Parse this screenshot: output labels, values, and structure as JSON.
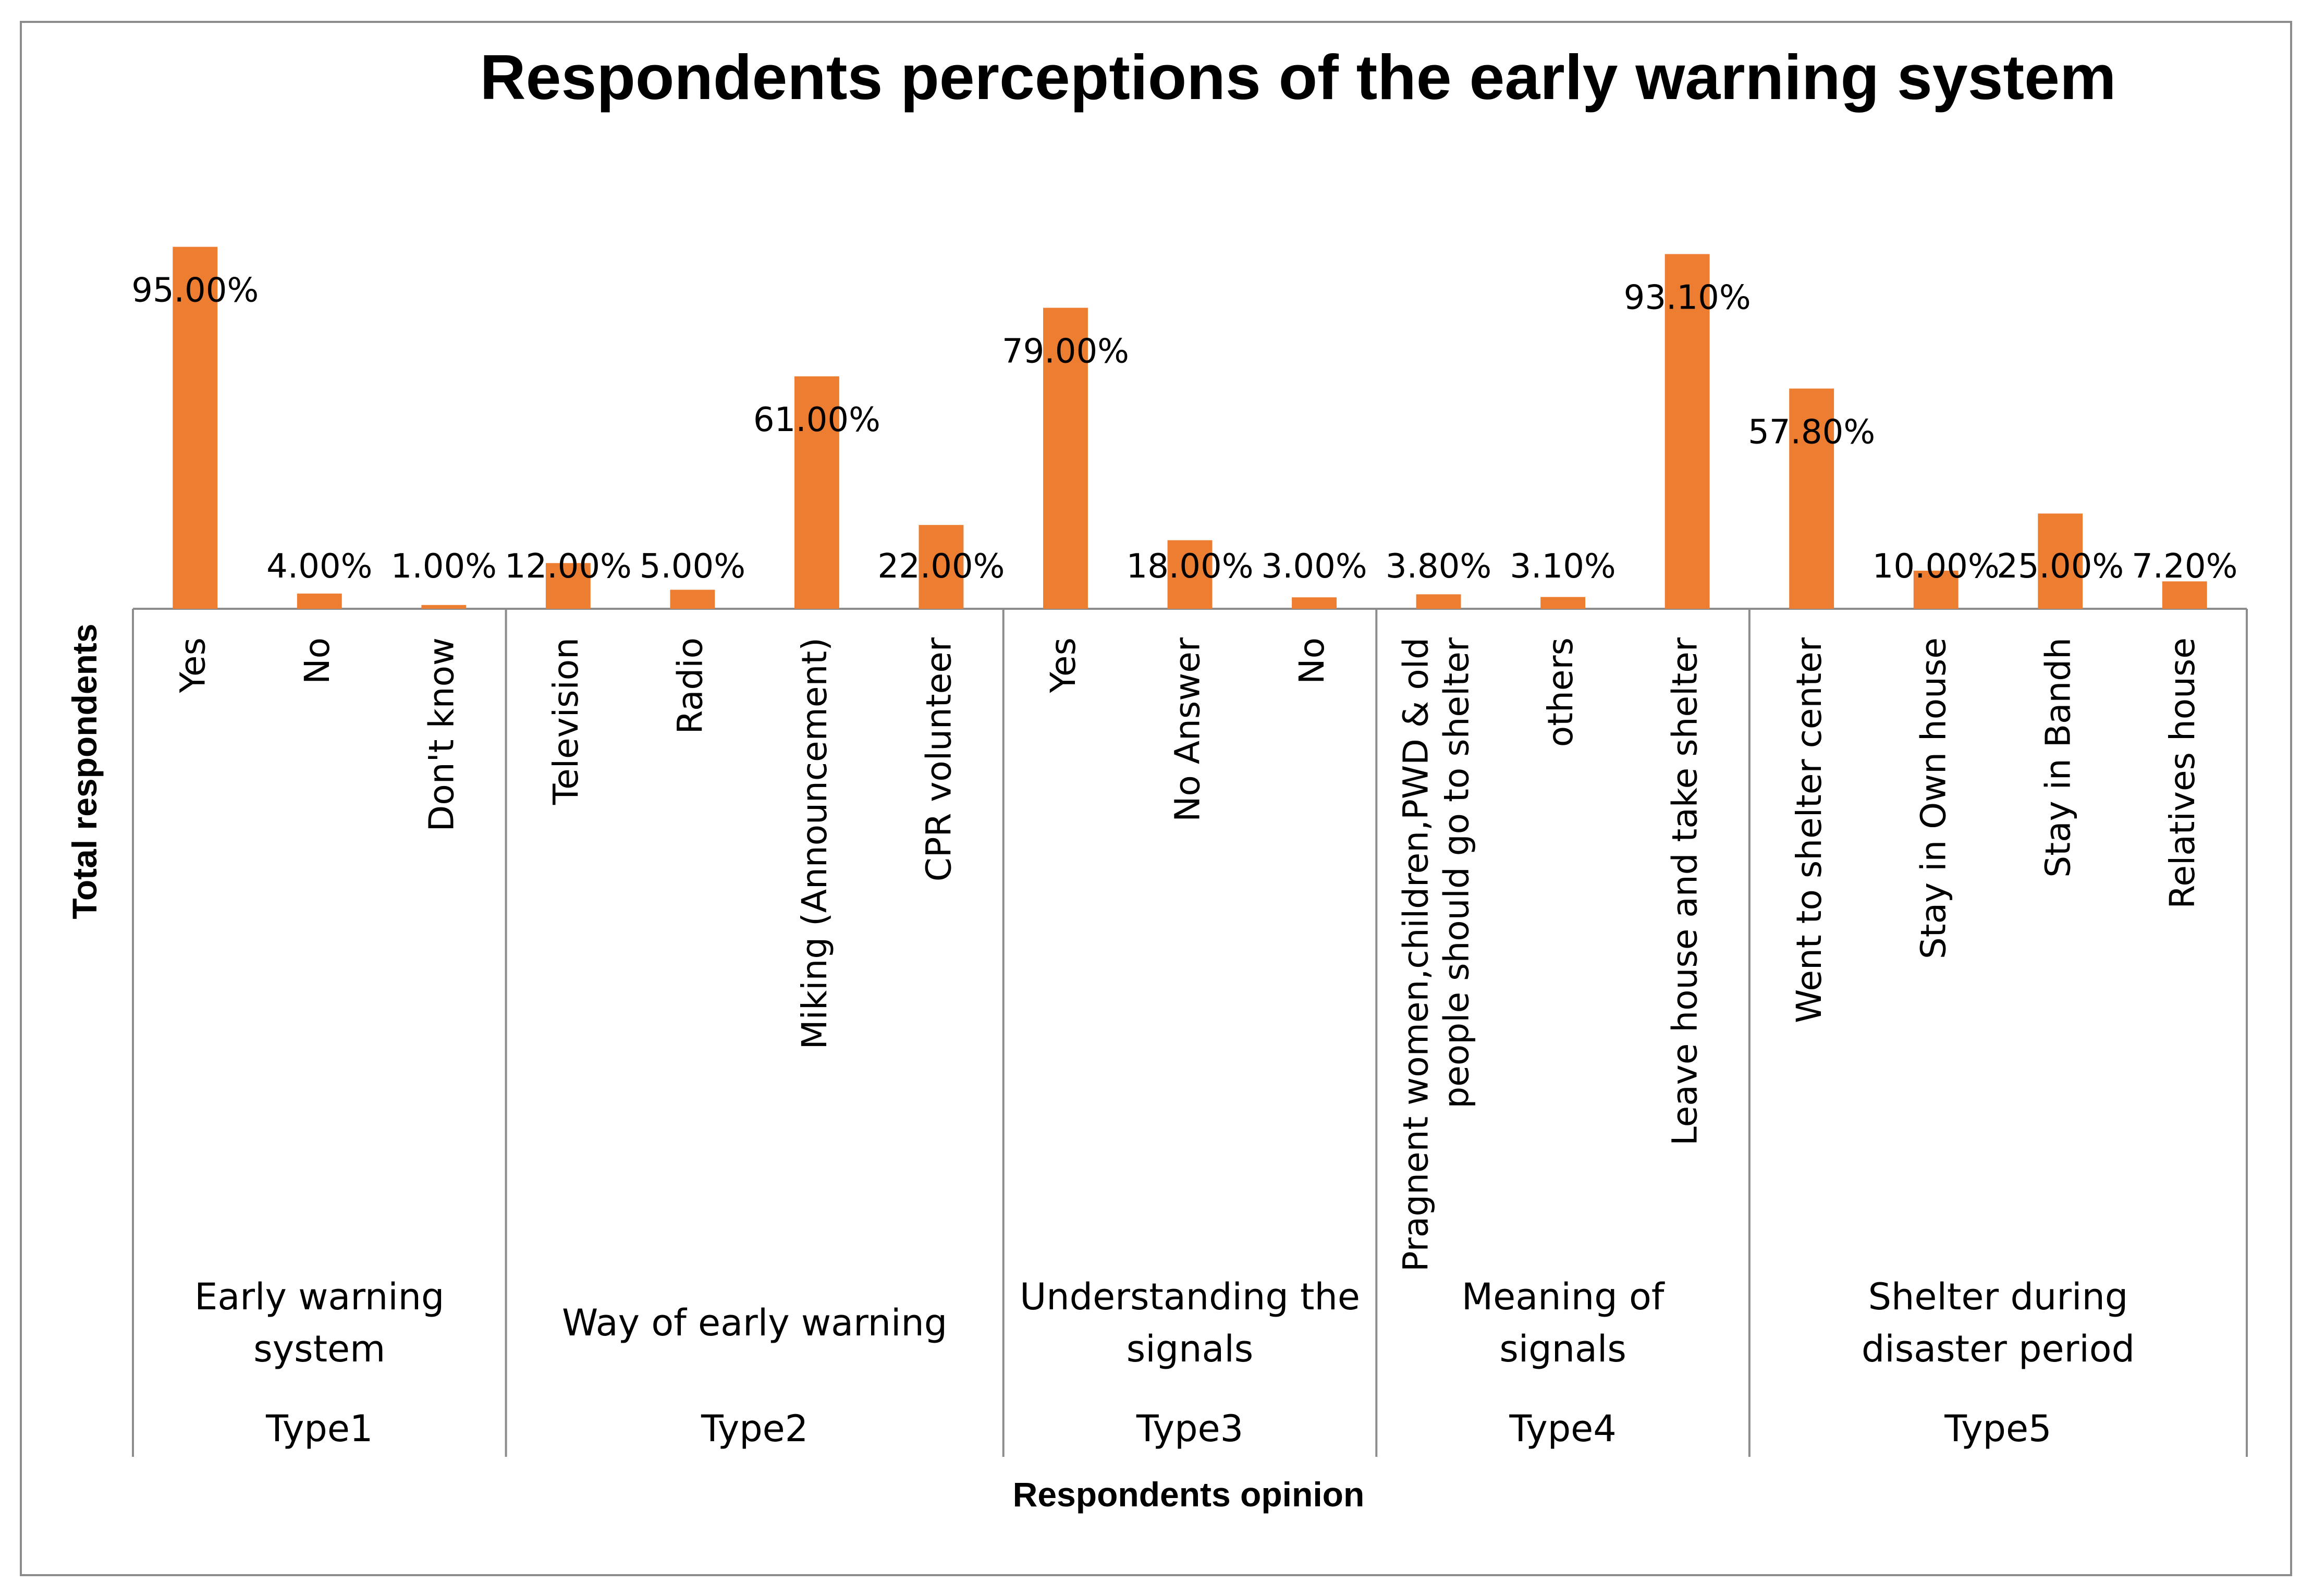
{
  "chart_data": {
    "type": "bar",
    "title": "Respondents perceptions of the early warning system",
    "xlabel": "Respondents opinion",
    "ylabel": "Total respondents",
    "ylim": [
      0,
      100
    ],
    "grid": false,
    "legend": "none",
    "bar_color": "#ED7D31",
    "groups": [
      {
        "type": "Type1",
        "name": "Early warning system",
        "items": [
          {
            "label": "Yes",
            "value": 95.0,
            "value_label": "95.00%"
          },
          {
            "label": "No",
            "value": 4.0,
            "value_label": "4.00%"
          },
          {
            "label": "Don't know",
            "value": 1.0,
            "value_label": "1.00%"
          }
        ]
      },
      {
        "type": "Type2",
        "name": "Way of early warning",
        "items": [
          {
            "label": "Television",
            "value": 12.0,
            "value_label": "12.00%"
          },
          {
            "label": "Radio",
            "value": 5.0,
            "value_label": "5.00%"
          },
          {
            "label": "Miking (Announcement)",
            "value": 61.0,
            "value_label": "61.00%"
          },
          {
            "label": "CPR volunteer",
            "value": 22.0,
            "value_label": "22.00%"
          }
        ]
      },
      {
        "type": "Type3",
        "name": "Understanding the signals",
        "items": [
          {
            "label": "Yes",
            "value": 79.0,
            "value_label": "79.00%"
          },
          {
            "label": "No Answer",
            "value": 18.0,
            "value_label": "18.00%"
          },
          {
            "label": "No",
            "value": 3.0,
            "value_label": "3.00%"
          }
        ]
      },
      {
        "type": "Type4",
        "name": "Meaning of signals",
        "items": [
          {
            "label": "Pragnent women,children,PWD & old people should go to shelter",
            "value": 3.8,
            "value_label": "3.80%"
          },
          {
            "label": "others",
            "value": 3.1,
            "value_label": "3.10%"
          },
          {
            "label": "Leave house and take shelter",
            "value": 93.1,
            "value_label": "93.10%"
          }
        ]
      },
      {
        "type": "Type5",
        "name": "Shelter during disaster period",
        "items": [
          {
            "label": "Went to shelter center",
            "value": 57.8,
            "value_label": "57.80%"
          },
          {
            "label": "Stay in Own house",
            "value": 10.0,
            "value_label": "10.00%"
          },
          {
            "label": "Stay in Bandh",
            "value": 25.0,
            "value_label": "25.00%"
          },
          {
            "label": "Relatives house",
            "value": 7.2,
            "value_label": "7.20%"
          }
        ]
      }
    ]
  }
}
